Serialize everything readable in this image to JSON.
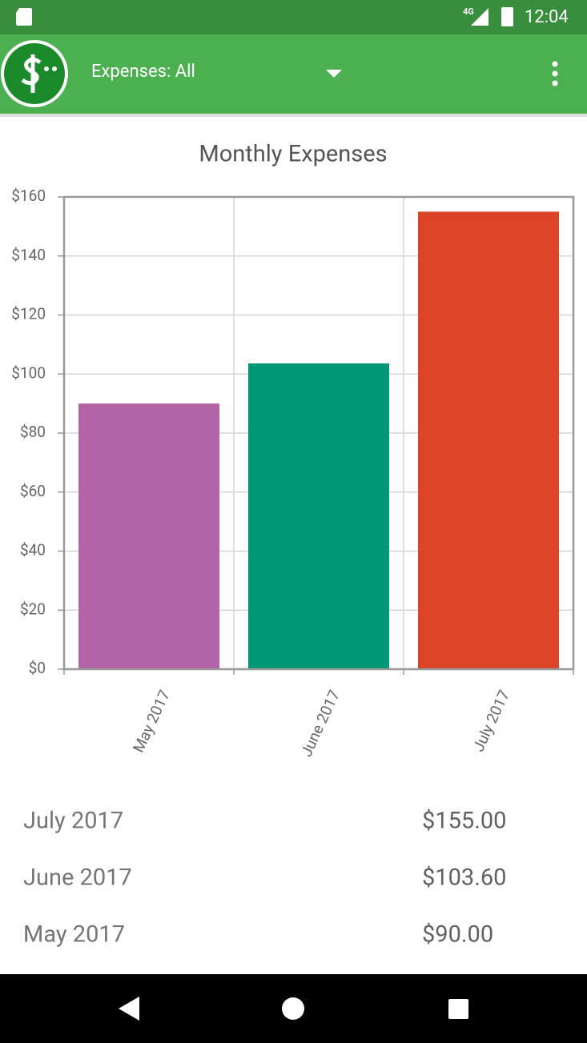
{
  "status_bar": {
    "network": "4G",
    "time": "12:04"
  },
  "app_bar": {
    "filter": "Expenses: All"
  },
  "chart_data": {
    "type": "bar",
    "title": "Monthly Expenses",
    "categories": [
      "May 2017",
      "June 2017",
      "July 2017"
    ],
    "values": [
      90,
      103.6,
      155
    ],
    "colors": [
      "#b264a6",
      "#009874",
      "#dc4426"
    ],
    "ylim": [
      0,
      160
    ],
    "yticks": [
      {
        "value": 0,
        "label": "$0"
      },
      {
        "value": 20,
        "label": "$20"
      },
      {
        "value": 40,
        "label": "$40"
      },
      {
        "value": 60,
        "label": "$60"
      },
      {
        "value": 80,
        "label": "$80"
      },
      {
        "value": 100,
        "label": "$100"
      },
      {
        "value": 120,
        "label": "$120"
      },
      {
        "value": 140,
        "label": "$140"
      },
      {
        "value": 160,
        "label": "$160"
      }
    ],
    "grid": true
  },
  "list": {
    "rows": [
      {
        "label": "July 2017",
        "amount": "$155.00"
      },
      {
        "label": "June 2017",
        "amount": "$103.60"
      },
      {
        "label": "May 2017",
        "amount": "$90.00"
      }
    ]
  }
}
